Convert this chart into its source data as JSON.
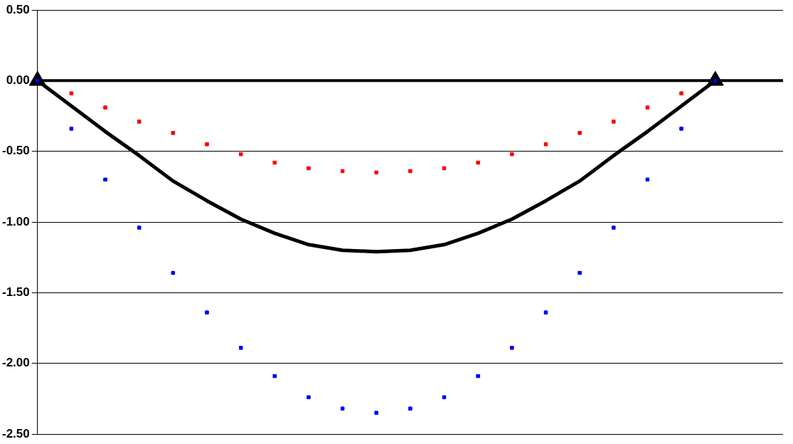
{
  "chart_data": {
    "type": "line",
    "categories": [
      null,
      null,
      null,
      null,
      null,
      null,
      null,
      null,
      null,
      null,
      null,
      null,
      null,
      null,
      null,
      null,
      null,
      null,
      null,
      null,
      null,
      null,
      null
    ],
    "series": [
      {
        "color": "#000000",
        "marker": "none",
        "values": [
          0,
          -0.18,
          -0.36,
          -0.53,
          -0.71,
          -0.85,
          -0.98,
          -1.08,
          -1.16,
          -1.2,
          -1.21,
          -1.2,
          -1.16,
          -1.08,
          -0.98,
          -0.85,
          -0.71,
          -0.53,
          -0.36,
          -0.18,
          0,
          null,
          null
        ]
      },
      {
        "type": "scatter",
        "color": "#000000",
        "marker": "triangle",
        "values": [
          0,
          null,
          null,
          null,
          null,
          null,
          null,
          null,
          null,
          null,
          null,
          null,
          null,
          null,
          null,
          null,
          null,
          null,
          null,
          null,
          0,
          null,
          null
        ]
      },
      {
        "type": "scatter",
        "color": "#ff0000",
        "marker": "square",
        "values": [
          null,
          -0.09,
          -0.19,
          -0.29,
          -0.37,
          -0.45,
          -0.52,
          -0.58,
          -0.62,
          -0.64,
          -0.65,
          -0.64,
          -0.62,
          -0.58,
          -0.52,
          -0.45,
          -0.37,
          -0.29,
          -0.19,
          -0.09,
          null,
          null,
          null
        ]
      },
      {
        "type": "scatter",
        "color": "#0000ff",
        "marker": "square",
        "values": [
          0,
          -0.34,
          -0.7,
          -1.04,
          -1.36,
          -1.64,
          -1.89,
          -2.09,
          -2.24,
          -2.32,
          -2.35,
          -2.32,
          -2.24,
          -2.09,
          -1.89,
          -1.64,
          -1.36,
          -1.04,
          -0.7,
          -0.34,
          0,
          null,
          null
        ]
      }
    ],
    "ylim": [
      -2.5,
      0.5
    ],
    "yticks": [
      {
        "value": 0.5,
        "label": "0.50"
      },
      {
        "value": 0,
        "label": "0.00"
      },
      {
        "value": -0.5,
        "label": "-0.50"
      },
      {
        "value": -1,
        "label": "-1.00"
      },
      {
        "value": -1.5,
        "label": "-1.50"
      },
      {
        "value": -2,
        "label": "-2.00"
      },
      {
        "value": -2.5,
        "label": "-2.50"
      }
    ],
    "ref_lines": [
      {
        "axis": "y",
        "value": 0,
        "color": "#000000"
      }
    ],
    "grid": "y",
    "legend": false,
    "tick_labels": "y"
  }
}
